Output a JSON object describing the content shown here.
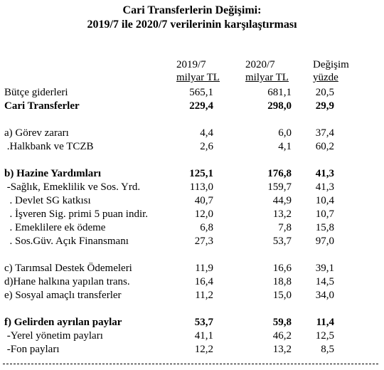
{
  "header": {
    "title": "Cari Transferlerin Değişimi:",
    "subtitle": "2019/7 ile 2020/7 verilerinin karşılaştırması"
  },
  "table": {
    "columns": [
      [
        "2019/7",
        "milyar TL"
      ],
      [
        "2020/7",
        "milyar TL"
      ],
      [
        "Değişim",
        "yüzde"
      ]
    ],
    "sections": [
      [
        {
          "label": "Bütçe giderleri",
          "values": [
            "565,1",
            "681,1",
            "20,5"
          ]
        },
        {
          "label": "Cari Transferler",
          "values": [
            "229,4",
            "298,0",
            "29,9"
          ],
          "emphasis": true
        }
      ],
      [
        {
          "label": "a) Görev zararı",
          "values": [
            "4,4",
            "6,0",
            "37,4"
          ]
        },
        {
          "label": " .Halkbank ve TCZB",
          "values": [
            "2,6",
            "4,1",
            "60,2"
          ]
        }
      ],
      [
        {
          "label": "b) Hazine Yardımları",
          "values": [
            "125,1",
            "176,8",
            "41,3"
          ],
          "emphasis": true
        },
        {
          "label": " -Sağlık, Emeklilik ve Sos. Yrd.",
          "values": [
            "113,0",
            "159,7",
            "41,3"
          ]
        },
        {
          "label": "  . Devlet SG katkısı",
          "values": [
            "40,7",
            "44,9",
            "10,4"
          ]
        },
        {
          "label": "  . İşveren Sig. primi 5 puan indir.",
          "values": [
            "12,0",
            "13,2",
            "10,7"
          ]
        },
        {
          "label": "  . Emeklilere ek ödeme",
          "values": [
            "6,8",
            "7,8",
            "15,8"
          ]
        },
        {
          "label": "  . Sos.Güv. Açık Finansmanı",
          "values": [
            "27,3",
            "53,7",
            "97,0"
          ]
        }
      ],
      [
        {
          "label": "c) Tarımsal Destek Ödemeleri",
          "values": [
            "11,9",
            "16,6",
            "39,1"
          ]
        },
        {
          "label": "d)Hane halkına yapılan trans.",
          "values": [
            "16,4",
            "18,8",
            "14,5"
          ]
        },
        {
          "label": "e) Sosyal amaçlı transferler",
          "values": [
            "11,2",
            "15,0",
            "34,0"
          ]
        }
      ],
      [
        {
          "label": "f) Gelirden ayrılan paylar",
          "values": [
            "53,7",
            "59,8",
            "11,4"
          ],
          "emphasis": true
        },
        {
          "label": " -Yerel yönetim payları",
          "values": [
            "41,1",
            "46,2",
            "12,5"
          ]
        },
        {
          "label": " -Fon payları",
          "values": [
            "12,2",
            "13,2",
            "8,5"
          ]
        }
      ]
    ]
  }
}
